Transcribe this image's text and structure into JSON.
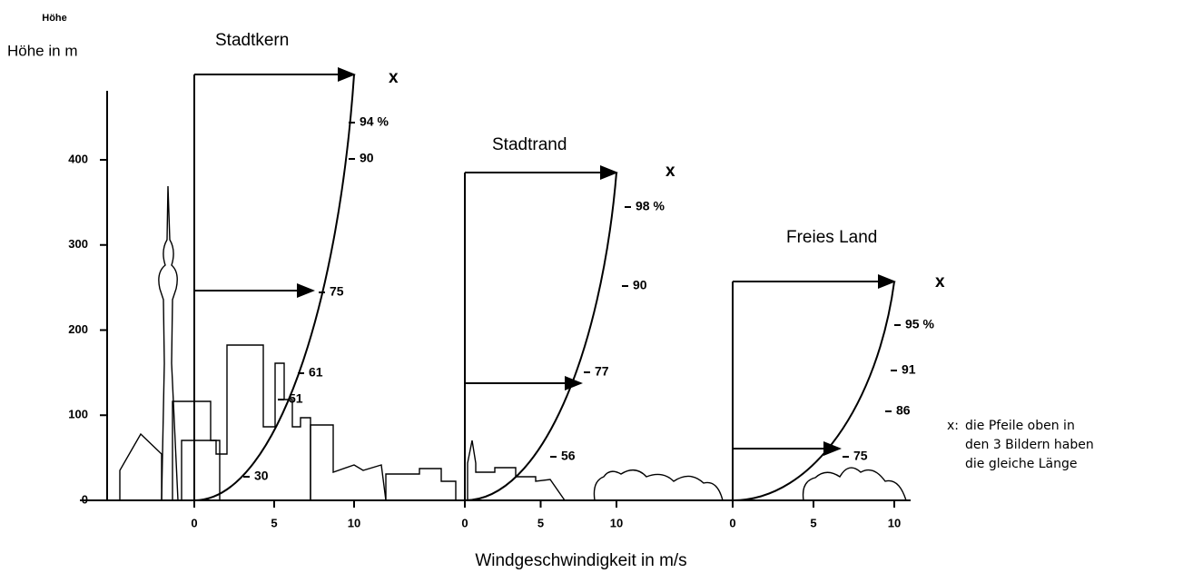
{
  "y_axis": {
    "heading": "Höhe",
    "title": "Höhe in m",
    "ticks": [
      0,
      100,
      200,
      300,
      400
    ]
  },
  "x_axis": {
    "title": "Windgeschwindigkeit in m/s"
  },
  "panels": [
    {
      "title": "Stadtkern",
      "arrow_label": "x",
      "ticks": [
        0,
        5,
        10
      ],
      "curve_labels": [
        "94 %",
        "90",
        "75",
        "61",
        "51",
        "30"
      ]
    },
    {
      "title": "Stadtrand",
      "arrow_label": "x",
      "ticks": [
        0,
        5,
        10
      ],
      "curve_labels": [
        "98 %",
        "90",
        "77",
        "56"
      ]
    },
    {
      "title": "Freies Land",
      "arrow_label": "x",
      "ticks": [
        0,
        5,
        10
      ],
      "curve_labels": [
        "95 %",
        "91",
        "86",
        "75"
      ]
    }
  ],
  "note": {
    "marker": "x:",
    "lines": [
      "die Pfeile oben in",
      "den 3 Bildern haben",
      "die gleiche Länge"
    ]
  }
}
